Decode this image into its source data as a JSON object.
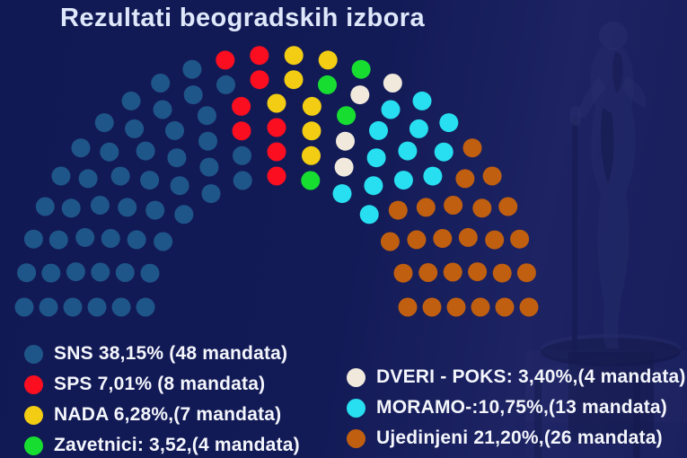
{
  "title": "Rezultati beogradskih izbora",
  "colors": {
    "background": "#131a56",
    "title_text": "#dfe8fa",
    "legend_text": "#f4f6fc"
  },
  "chart_data": {
    "type": "parliament",
    "title": "Rezultati beogradskih izbora",
    "total_seats": 110,
    "rows": 6,
    "arc_span_degrees": 180,
    "legend_position": "bottom",
    "series": [
      {
        "name": "SNS",
        "percent": "38,15%",
        "seats": 48,
        "color": "#1f568a",
        "label": "SNS 38,15% (48 mandata)",
        "legend_column": "left"
      },
      {
        "name": "SPS",
        "percent": "7,01%",
        "seats": 8,
        "color": "#fa0e20",
        "label": "SPS 7,01% (8 mandata)",
        "legend_column": "left"
      },
      {
        "name": "NADA",
        "percent": "6,28%",
        "seats": 7,
        "color": "#f2cd13",
        "label": "NADA 6,28%,(7 mandata)",
        "legend_column": "left"
      },
      {
        "name": "Zavetnici",
        "percent": "3,52",
        "seats": 4,
        "color": "#17dd31",
        "label": "Zavetnici: 3,52,(4 mandata)",
        "legend_column": "left"
      },
      {
        "name": "DVERI - POKS",
        "percent": "3,40%",
        "seats": 4,
        "color": "#f0e9dc",
        "label": "DVERI - POKS: 3,40%,(4 mandata)",
        "legend_column": "right"
      },
      {
        "name": "MORAMO",
        "percent": "10,75%",
        "seats": 13,
        "color": "#27dff0",
        "label": "MORAMO-:10,75%,(13 mandata)",
        "legend_column": "right"
      },
      {
        "name": "Ujedinjeni",
        "percent": "21,20%",
        "seats": 26,
        "color": "#c05f10",
        "label": "Ujedinjeni 21,20%,(26 mandata)",
        "legend_column": "right"
      }
    ]
  }
}
